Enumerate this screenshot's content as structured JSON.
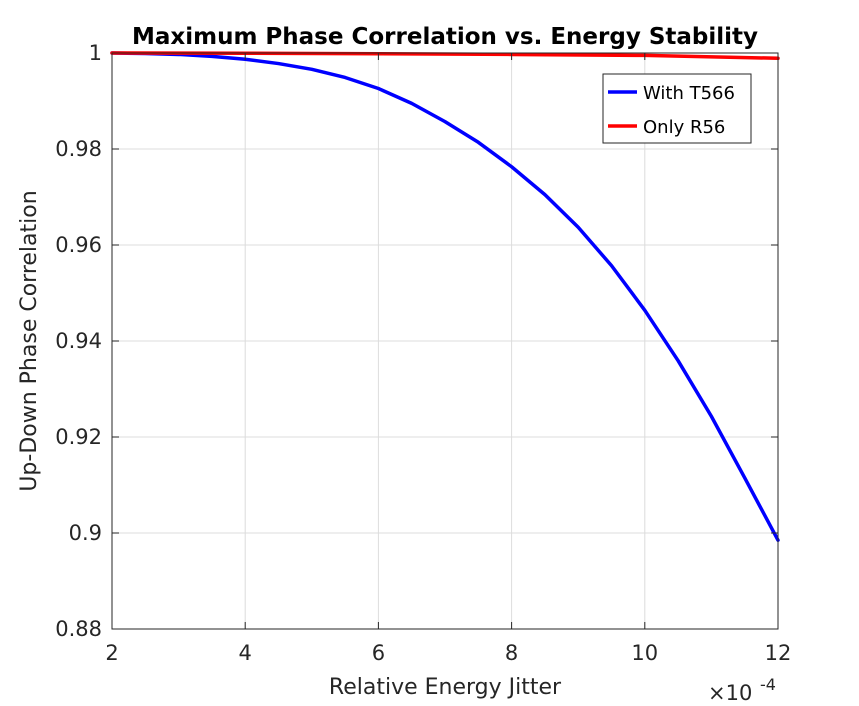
{
  "chart_data": {
    "type": "line",
    "title": "Maximum Phase Correlation vs. Energy Stability",
    "xlabel": "Relative Energy Jitter",
    "ylabel": "Up-Down Phase Correlation",
    "x_exponent_base": "×10",
    "x_exponent_power": "-4",
    "xlim": [
      2,
      12
    ],
    "ylim": [
      0.88,
      1.0
    ],
    "xticks": [
      2,
      4,
      6,
      8,
      10,
      12
    ],
    "xtick_labels": [
      "2",
      "4",
      "6",
      "8",
      "10",
      "12"
    ],
    "yticks": [
      0.88,
      0.9,
      0.92,
      0.94,
      0.96,
      0.98,
      1.0
    ],
    "ytick_labels": [
      "0.88",
      "0.9",
      "0.92",
      "0.94",
      "0.96",
      "0.98",
      "1"
    ],
    "grid": true,
    "legend_position": "top-right",
    "series": [
      {
        "name": "With T566",
        "color": "#0000ff",
        "x": [
          2,
          2.5,
          3,
          3.5,
          4,
          4.5,
          5,
          5.5,
          6,
          6.5,
          7,
          7.5,
          8,
          8.5,
          9,
          9.5,
          10,
          10.5,
          11,
          11.5,
          12
        ],
        "y": [
          1.0,
          0.9999,
          0.9997,
          0.9993,
          0.9987,
          0.9978,
          0.9966,
          0.9949,
          0.9926,
          0.9895,
          0.9857,
          0.9814,
          0.9763,
          0.9705,
          0.9637,
          0.9557,
          0.9464,
          0.9359,
          0.9243,
          0.9115,
          0.8985
        ]
      },
      {
        "name": "Only R56",
        "color": "#ff0000",
        "x": [
          2,
          4,
          6,
          8,
          10,
          12
        ],
        "y": [
          1.0,
          0.99995,
          0.99985,
          0.9997,
          0.9995,
          0.9989
        ]
      }
    ]
  }
}
